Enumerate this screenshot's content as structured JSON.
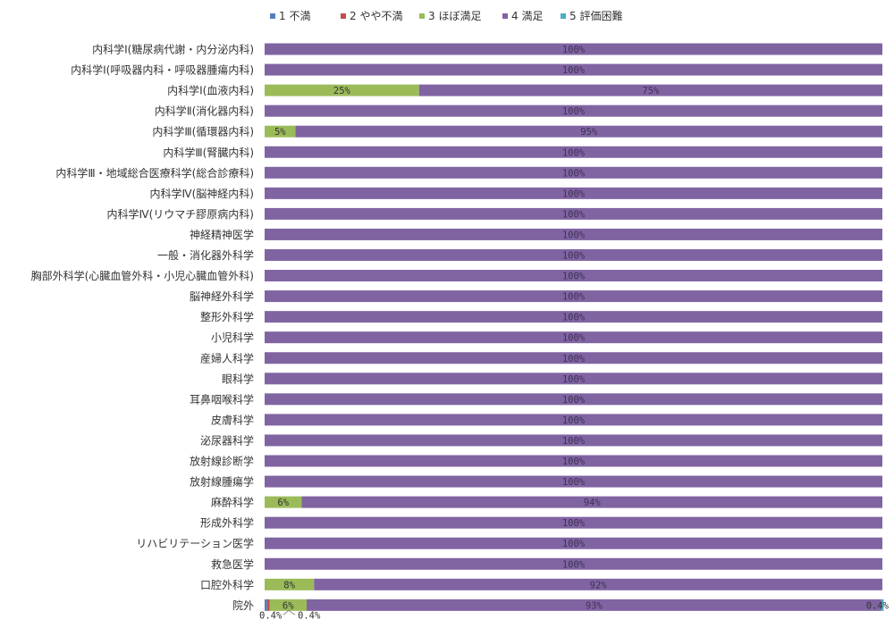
{
  "chart_data": {
    "type": "bar",
    "orientation": "horizontal",
    "stacked": "percent",
    "legend_position": "top",
    "grid": false,
    "xlim": [
      0,
      100
    ],
    "categories": [
      "内科学Ⅰ(糖尿病代謝・内分泌内科)",
      "内科学Ⅰ(呼吸器内科・呼吸器腫瘍内科)",
      "内科学Ⅰ(血液内科)",
      "内科学Ⅱ(消化器内科)",
      "内科学Ⅲ(循環器内科)",
      "内科学Ⅲ(腎臓内科)",
      "内科学Ⅲ・地域総合医療科学(総合診療科)",
      "内科学Ⅳ(脳神経内科)",
      "内科学Ⅳ(リウマチ膠原病内科)",
      "神経精神医学",
      "一般・消化器外科学",
      "胸部外科学(心臓血管外科・小児心臓血管外科)",
      "脳神経外科学",
      "整形外科学",
      "小児科学",
      "産婦人科学",
      "眼科学",
      "耳鼻咽喉科学",
      "皮膚科学",
      "泌尿器科学",
      "放射線診断学",
      "放射線腫瘍学",
      "麻酔科学",
      "形成外科学",
      "リハビリテーション医学",
      "救急医学",
      "口腔外科学",
      "院外"
    ],
    "series": [
      {
        "name": "1 不満",
        "color": "#4f81bd",
        "values": [
          0,
          0,
          0,
          0,
          0,
          0,
          0,
          0,
          0,
          0,
          0,
          0,
          0,
          0,
          0,
          0,
          0,
          0,
          0,
          0,
          0,
          0,
          0,
          0,
          0,
          0,
          0,
          0.4
        ]
      },
      {
        "name": "2 やや不満",
        "color": "#c0504d",
        "values": [
          0,
          0,
          0,
          0,
          0,
          0,
          0,
          0,
          0,
          0,
          0,
          0,
          0,
          0,
          0,
          0,
          0,
          0,
          0,
          0,
          0,
          0,
          0,
          0,
          0,
          0,
          0,
          0.4
        ]
      },
      {
        "name": "3 ほぼ満足",
        "color": "#9bbb59",
        "values": [
          0,
          0,
          25,
          0,
          5,
          0,
          0,
          0,
          0,
          0,
          0,
          0,
          0,
          0,
          0,
          0,
          0,
          0,
          0,
          0,
          0,
          0,
          6,
          0,
          0,
          0,
          8,
          6
        ]
      },
      {
        "name": "4 満足",
        "color": "#8064a2",
        "values": [
          100,
          100,
          75,
          100,
          95,
          100,
          100,
          100,
          100,
          100,
          100,
          100,
          100,
          100,
          100,
          100,
          100,
          100,
          100,
          100,
          100,
          100,
          94,
          100,
          100,
          100,
          92,
          93
        ]
      },
      {
        "name": "5 評価困難",
        "color": "#4bacc6",
        "values": [
          0,
          0,
          0,
          0,
          0,
          0,
          0,
          0,
          0,
          0,
          0,
          0,
          0,
          0,
          0,
          0,
          0,
          0,
          0,
          0,
          0,
          0,
          0,
          0,
          0,
          0,
          0,
          0.4
        ]
      }
    ],
    "data_labels": [
      [
        "100%"
      ],
      [
        "100%"
      ],
      [
        "25%",
        "75%"
      ],
      [
        "100%"
      ],
      [
        "5%",
        "95%"
      ],
      [
        "100%"
      ],
      [
        "100%"
      ],
      [
        "100%"
      ],
      [
        "100%"
      ],
      [
        "100%"
      ],
      [
        "100%"
      ],
      [
        "100%"
      ],
      [
        "100%"
      ],
      [
        "100%"
      ],
      [
        "100%"
      ],
      [
        "100%"
      ],
      [
        "100%"
      ],
      [
        "100%"
      ],
      [
        "100%"
      ],
      [
        "100%"
      ],
      [
        "100%"
      ],
      [
        "100%"
      ],
      [
        "6%",
        "94%"
      ],
      [
        "100%"
      ],
      [
        "100%"
      ],
      [
        "100%"
      ],
      [
        "8%",
        "92%"
      ],
      [
        "6%",
        "93%"
      ]
    ],
    "extra_labels": {
      "below_first": "0.4%",
      "below_second": "0.4%",
      "end": "0.4%"
    }
  }
}
